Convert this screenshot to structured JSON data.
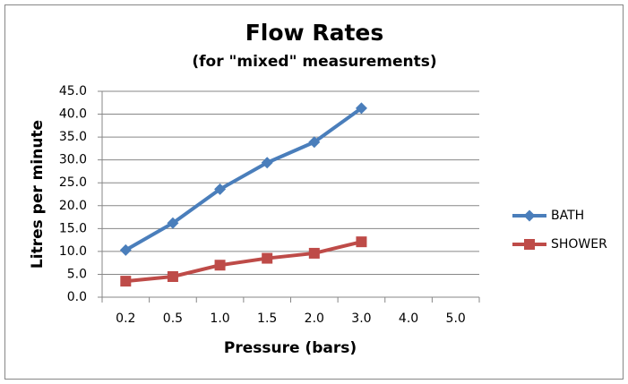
{
  "chart_data": {
    "type": "line",
    "title": "Flow Rates",
    "subtitle": "(for \"mixed\" measurements)",
    "x_label": "Pressure (bars)",
    "y_label": "Litres per minute",
    "categories": [
      "0.2",
      "0.5",
      "1.0",
      "1.5",
      "2.0",
      "3.0",
      "4.0",
      "5.0"
    ],
    "series": [
      {
        "name": "BATH",
        "color": "#4a7ebb",
        "marker": "diamond",
        "values": [
          10.3,
          16.2,
          23.6,
          29.4,
          33.9,
          41.3,
          null,
          null
        ]
      },
      {
        "name": "SHOWER",
        "color": "#be4b48",
        "marker": "square",
        "values": [
          3.5,
          4.5,
          7.0,
          8.5,
          9.6,
          12.1,
          null,
          null
        ]
      }
    ],
    "ylim": [
      0,
      45
    ],
    "yticks": [
      {
        "value": 0,
        "label": "0.0"
      },
      {
        "value": 5,
        "label": "5.0"
      },
      {
        "value": 10,
        "label": "10.0"
      },
      {
        "value": 15,
        "label": "15.0"
      },
      {
        "value": 20,
        "label": "20.0"
      },
      {
        "value": 25,
        "label": "25.0"
      },
      {
        "value": 30,
        "label": "30.0"
      },
      {
        "value": 35,
        "label": "35.0"
      },
      {
        "value": 40,
        "label": "40.0"
      },
      {
        "value": 45,
        "label": "45.0"
      }
    ],
    "grid": true,
    "legend": "right"
  }
}
